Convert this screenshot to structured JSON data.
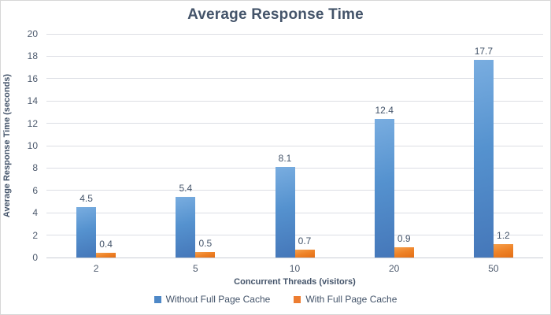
{
  "chart_data": {
    "type": "bar",
    "title": "Average Response Time",
    "xlabel": "Concurrent Threads (visitors)",
    "ylabel": "Average Response Time (seconds)",
    "categories": [
      "2",
      "5",
      "10",
      "20",
      "50"
    ],
    "series": [
      {
        "name": "Without Full Page Cache",
        "values": [
          4.5,
          5.4,
          8.1,
          12.4,
          17.7
        ],
        "color": "#4e88c7",
        "color_light": "#79ade0",
        "color_dark": "#4577b9"
      },
      {
        "name": "With Full Page Cache",
        "values": [
          0.4,
          0.5,
          0.7,
          0.9,
          1.2
        ],
        "color": "#ed7d31",
        "color_light": "#f6a04c",
        "color_dark": "#e36e15"
      }
    ],
    "ylim": [
      0,
      20
    ],
    "ytick_step": 2,
    "grid": true,
    "legend_position": "bottom",
    "data_labels": true,
    "style": {
      "title_color": "#44546a",
      "tick_color": "#4e5b6e",
      "grid_color": "#dcdee4",
      "axis_line_color": "#c9ced6"
    }
  }
}
